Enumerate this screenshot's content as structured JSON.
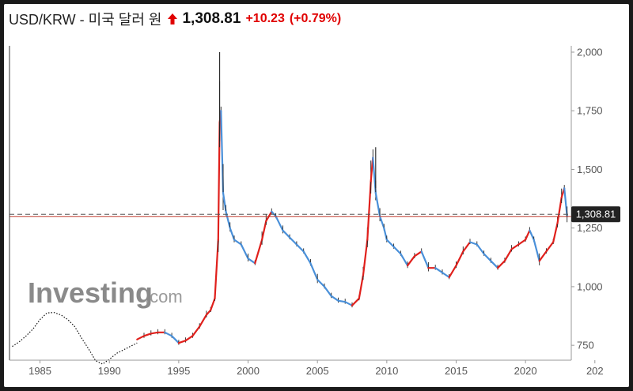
{
  "header": {
    "symbol": "USD/KRW - 미국 달러 원",
    "price": "1,308.81",
    "change": "+10.23",
    "change_pct": "(+0.79%)"
  },
  "colors": {
    "up": "#e0201c",
    "down": "#4a90d9",
    "wick": "#222222",
    "line": "#111111",
    "ref_line": "#c0392b",
    "price_label_bg": "#222222",
    "watermark": "#8a8a8a"
  },
  "watermark": {
    "brand": "Investing",
    "suffix": ".com"
  },
  "price_label": "1,308.81",
  "chart_data": {
    "type": "line",
    "title": "",
    "xlabel": "",
    "ylabel": "",
    "ylim": [
      700,
      2000
    ],
    "xlim": [
      1982.8,
      2023.3
    ],
    "x_ticks": [
      "1985",
      "1990",
      "1995",
      "2000",
      "2005",
      "2010",
      "2015",
      "2020",
      "202"
    ],
    "y_ticks": [
      "2,000",
      "1,750",
      "1,500",
      "1,250",
      "1,000",
      "750"
    ],
    "current_price": 1308.81,
    "ref_level": 1298.58,
    "series": [
      {
        "style": "dotted-line",
        "x": [
          1983.0,
          1983.5,
          1984.0,
          1984.5,
          1985.0,
          1985.5,
          1986.0,
          1986.5,
          1987.0,
          1987.5,
          1988.0,
          1988.5,
          1989.0,
          1989.5,
          1990.0,
          1990.5,
          1991.0,
          1991.5,
          1992.0
        ],
        "y": [
          745,
          765,
          790,
          820,
          860,
          888,
          890,
          880,
          860,
          830,
          780,
          735,
          685,
          670,
          690,
          715,
          730,
          745,
          760
        ]
      },
      {
        "style": "candles",
        "x": [
          1992.0,
          1992.5,
          1993.0,
          1993.5,
          1994.0,
          1994.5,
          1995.0,
          1995.5,
          1996.0,
          1996.5,
          1997.0,
          1997.3,
          1997.6,
          1997.85,
          1997.95,
          1998.05,
          1998.2,
          1998.4,
          1998.7,
          1999.0,
          1999.5,
          2000.0,
          2000.5,
          2001.0,
          2001.3,
          2001.7,
          2002.0,
          2002.5,
          2003.0,
          2003.5,
          2004.0,
          2004.5,
          2005.0,
          2005.5,
          2006.0,
          2006.5,
          2007.0,
          2007.5,
          2008.0,
          2008.3,
          2008.6,
          2008.85,
          2009.0,
          2009.2,
          2009.5,
          2009.8,
          2010.0,
          2010.5,
          2011.0,
          2011.5,
          2012.0,
          2012.5,
          2013.0,
          2013.5,
          2014.0,
          2014.5,
          2015.0,
          2015.5,
          2016.0,
          2016.5,
          2017.0,
          2017.5,
          2018.0,
          2018.5,
          2019.0,
          2019.5,
          2020.0,
          2020.3,
          2020.6,
          2021.0,
          2021.5,
          2022.0,
          2022.3,
          2022.6,
          2022.8,
          2023.0
        ],
        "y": [
          775,
          790,
          800,
          805,
          805,
          790,
          760,
          770,
          790,
          830,
          880,
          900,
          950,
          1200,
          1700,
          1750,
          1400,
          1320,
          1250,
          1200,
          1180,
          1120,
          1100,
          1200,
          1280,
          1320,
          1300,
          1240,
          1210,
          1180,
          1150,
          1100,
          1030,
          1000,
          960,
          940,
          935,
          920,
          950,
          1050,
          1200,
          1450,
          1550,
          1400,
          1300,
          1250,
          1200,
          1170,
          1140,
          1090,
          1130,
          1150,
          1080,
          1080,
          1060,
          1040,
          1090,
          1150,
          1190,
          1180,
          1140,
          1110,
          1080,
          1110,
          1160,
          1180,
          1200,
          1240,
          1200,
          1110,
          1150,
          1190,
          1270,
          1380,
          1420,
          1300
        ]
      }
    ]
  }
}
